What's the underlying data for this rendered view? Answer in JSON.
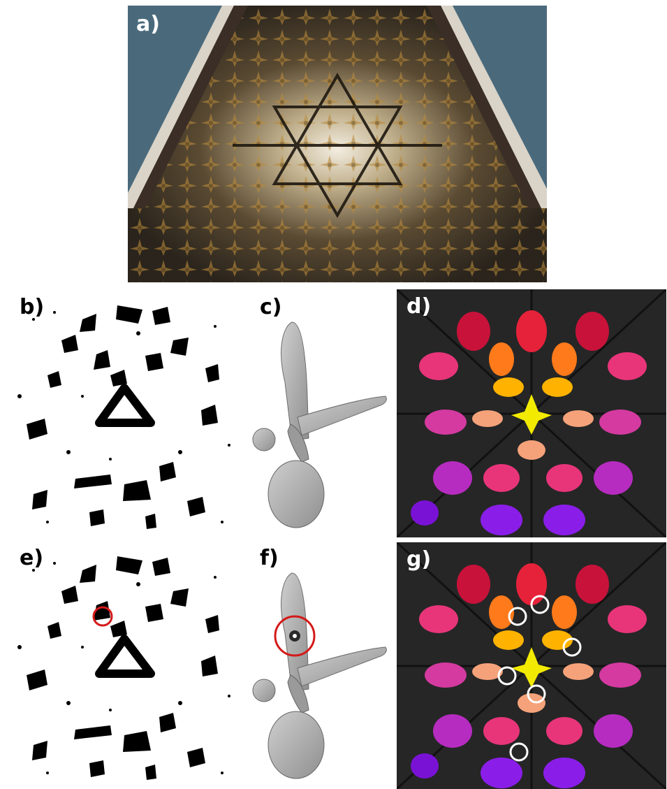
{
  "figure": {
    "panels": [
      {
        "id": "a",
        "label": "a)",
        "content": "kaleidoscope-photo",
        "label_color": "#ffffff"
      },
      {
        "id": "b",
        "label": "b)",
        "content": "binary-silhouette-mask",
        "label_color": "#000000"
      },
      {
        "id": "c",
        "label": "c)",
        "content": "dragonfly-3d-reconstruction",
        "label_color": "#000000"
      },
      {
        "id": "d",
        "label": "d)",
        "content": "colored-chamber-labeling",
        "label_color": "#ffffff"
      },
      {
        "id": "e",
        "label": "e)",
        "content": "binary-silhouette-mask-with-error",
        "label_color": "#000000"
      },
      {
        "id": "f",
        "label": "f)",
        "content": "dragonfly-reconstruction-with-hole",
        "label_color": "#000000"
      },
      {
        "id": "g",
        "label": "g)",
        "content": "colored-chamber-labeling-with-errors",
        "label_color": "#ffffff"
      }
    ],
    "highlight_colors": {
      "error_circle_red": "#d41a1a",
      "error_circle_white": "#ffffff"
    },
    "chamber_palette": [
      "#f2ea00",
      "#ffb300",
      "#ff7a1a",
      "#f5a27a",
      "#ff5a3a",
      "#e6223a",
      "#c8123a",
      "#e8357a",
      "#d43aa0",
      "#b62cc0",
      "#8a1ee8",
      "#7a12d6"
    ]
  }
}
